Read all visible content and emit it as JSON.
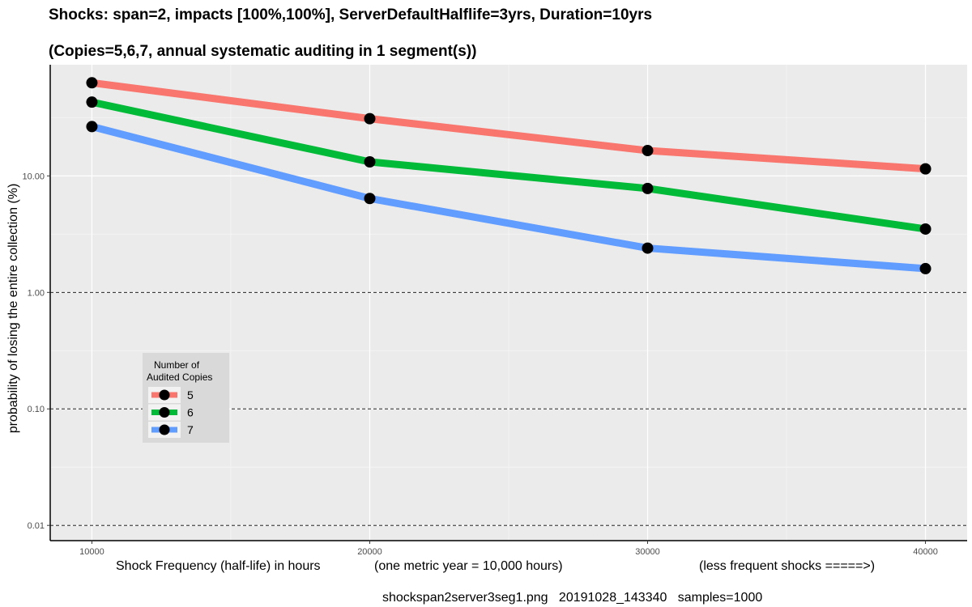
{
  "chart_data": {
    "type": "line",
    "title": "Shocks: span=2, impacts [100%,100%], ServerDefaultHalflife=3yrs, Duration=10yrs",
    "subtitle": "(Copies=5,6,7, annual systematic auditing in 1 segment(s))",
    "xlabel": "Shock Frequency (half-life) in hours",
    "xlabel_parts": [
      "Shock Frequency (half-life) in hours",
      "(one metric year = 10,000 hours)",
      "(less frequent shocks =====>)"
    ],
    "ylabel": "probability of losing the entire collection (%)",
    "caption": "shockspan2server3seg1.png   20191028_143340   samples=1000",
    "x_ticks": [
      10000,
      20000,
      30000,
      40000
    ],
    "x_tick_labels": [
      "10000",
      "20000",
      "30000",
      "40000"
    ],
    "y_scale": "log10",
    "y_ticks": [
      0.01,
      0.1,
      1,
      10
    ],
    "y_tick_labels": [
      "0.01",
      "0.10",
      "1.00",
      "10.00"
    ],
    "y_dashed_lines": [
      0.01,
      0.1,
      1
    ],
    "xlim": [
      8500,
      41500
    ],
    "ylim": [
      0.0074,
      90
    ],
    "grid": true,
    "legend": {
      "title_lines": [
        "Number of",
        "Audited Copies"
      ],
      "position": "bottom-left inside plot"
    },
    "x": [
      10000,
      20000,
      30000,
      40000
    ],
    "series": [
      {
        "name": "5",
        "color": "#F8766D",
        "values": [
          63,
          31,
          16.5,
          11.5
        ]
      },
      {
        "name": "6",
        "color": "#00BA38",
        "values": [
          43,
          13.2,
          7.8,
          3.5
        ]
      },
      {
        "name": "7",
        "color": "#619CFF",
        "values": [
          26.5,
          6.4,
          2.4,
          1.6
        ]
      }
    ]
  }
}
